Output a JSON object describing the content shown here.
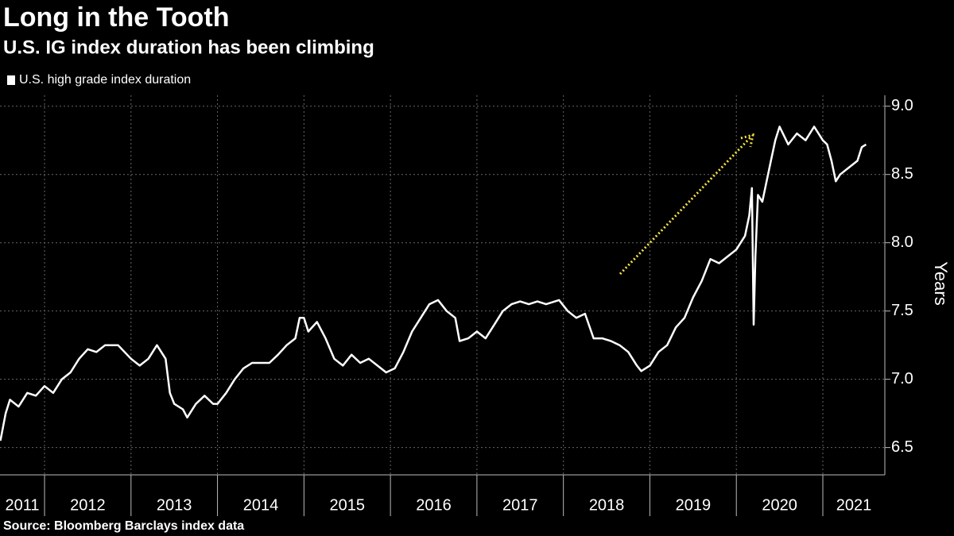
{
  "chart_data": {
    "type": "line",
    "title": "Long in the Tooth",
    "subtitle": "U.S. IG index duration has been climbing",
    "y_label": "Years",
    "source": "Source: Bloomberg Barclays index data",
    "x": [
      2011.49,
      2011.55,
      2011.6,
      2011.7,
      2011.8,
      2011.9,
      2012.0,
      2012.1,
      2012.2,
      2012.3,
      2012.4,
      2012.5,
      2012.6,
      2012.7,
      2012.85,
      2013.0,
      2013.1,
      2013.2,
      2013.3,
      2013.4,
      2013.45,
      2013.5,
      2013.6,
      2013.65,
      2013.75,
      2013.85,
      2013.95,
      2014.0,
      2014.1,
      2014.2,
      2014.3,
      2014.4,
      2014.5,
      2014.6,
      2014.7,
      2014.8,
      2014.9,
      2014.95,
      2015.0,
      2015.05,
      2015.15,
      2015.25,
      2015.35,
      2015.45,
      2015.55,
      2015.65,
      2015.75,
      2015.85,
      2015.95,
      2016.05,
      2016.15,
      2016.25,
      2016.35,
      2016.45,
      2016.55,
      2016.65,
      2016.75,
      2016.8,
      2016.9,
      2017.0,
      2017.1,
      2017.2,
      2017.3,
      2017.4,
      2017.5,
      2017.6,
      2017.7,
      2017.8,
      2017.95,
      2018.05,
      2018.15,
      2018.25,
      2018.35,
      2018.45,
      2018.55,
      2018.65,
      2018.75,
      2018.85,
      2018.9,
      2019.0,
      2019.1,
      2019.2,
      2019.3,
      2019.4,
      2019.5,
      2019.6,
      2019.7,
      2019.8,
      2019.9,
      2020.0,
      2020.1,
      2020.15,
      2020.18,
      2020.2,
      2020.22,
      2020.25,
      2020.3,
      2020.35,
      2020.4,
      2020.45,
      2020.5,
      2020.6,
      2020.7,
      2020.8,
      2020.9,
      2021.0,
      2021.05,
      2021.1,
      2021.15,
      2021.2,
      2021.3,
      2021.4,
      2021.45,
      2021.5
    ],
    "series": [
      {
        "name": "U.S. high grade index duration",
        "color": "#ffffff",
        "values": [
          6.55,
          6.75,
          6.85,
          6.8,
          6.9,
          6.88,
          6.95,
          6.9,
          7.0,
          7.05,
          7.15,
          7.22,
          7.2,
          7.25,
          7.25,
          7.15,
          7.1,
          7.15,
          7.25,
          7.15,
          6.9,
          6.82,
          6.78,
          6.72,
          6.82,
          6.88,
          6.82,
          6.82,
          6.9,
          7.0,
          7.08,
          7.12,
          7.12,
          7.12,
          7.18,
          7.25,
          7.3,
          7.45,
          7.45,
          7.35,
          7.42,
          7.3,
          7.15,
          7.1,
          7.18,
          7.12,
          7.15,
          7.1,
          7.05,
          7.08,
          7.2,
          7.35,
          7.45,
          7.55,
          7.58,
          7.5,
          7.45,
          7.28,
          7.3,
          7.35,
          7.3,
          7.4,
          7.5,
          7.55,
          7.57,
          7.55,
          7.57,
          7.55,
          7.58,
          7.5,
          7.45,
          7.48,
          7.3,
          7.3,
          7.28,
          7.25,
          7.2,
          7.1,
          7.06,
          7.1,
          7.2,
          7.25,
          7.38,
          7.45,
          7.6,
          7.72,
          7.88,
          7.85,
          7.9,
          7.95,
          8.05,
          8.2,
          8.4,
          7.4,
          7.9,
          8.35,
          8.3,
          8.45,
          8.6,
          8.75,
          8.85,
          8.72,
          8.8,
          8.75,
          8.85,
          8.75,
          8.72,
          8.6,
          8.45,
          8.5,
          8.55,
          8.6,
          8.7,
          8.72
        ]
      }
    ],
    "xlim": [
      2011.485,
      2021.717
    ],
    "xticks": [
      2011,
      2012,
      2013,
      2014,
      2015,
      2016,
      2017,
      2018,
      2019,
      2020,
      2021
    ],
    "ylim": [
      6.3,
      9.08
    ],
    "yticks": [
      {
        "value": 6.5,
        "label": "6.5"
      },
      {
        "value": 7,
        "label": "7.0"
      },
      {
        "value": 7.5,
        "label": "7.5"
      },
      {
        "value": 8,
        "label": "8.0"
      },
      {
        "value": 8.5,
        "label": "8.5"
      },
      {
        "value": 9,
        "label": "9.0"
      }
    ],
    "grid": true
  }
}
